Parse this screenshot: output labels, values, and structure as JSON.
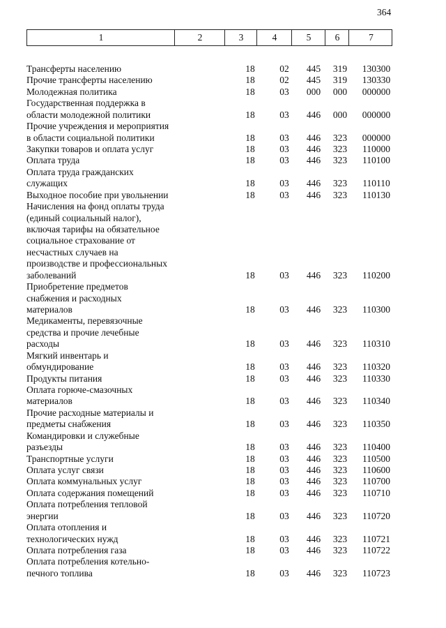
{
  "page_number": "364",
  "table": {
    "header": [
      "1",
      "2",
      "3",
      "4",
      "5",
      "6",
      "7"
    ],
    "rows": [
      {
        "name": [
          "Трансферты населению"
        ],
        "codes": [
          "18",
          "02",
          "445",
          "319",
          "130300"
        ]
      },
      {
        "name": [
          "Прочие трансферты населению"
        ],
        "codes": [
          "18",
          "02",
          "445",
          "319",
          "130330"
        ]
      },
      {
        "name": [
          "Молодежная политика"
        ],
        "codes": [
          "18",
          "03",
          "000",
          "000",
          "000000"
        ]
      },
      {
        "name": [
          "Государственная поддержка в",
          "области молодежной политики"
        ],
        "codes": [
          "18",
          "03",
          "446",
          "000",
          "000000"
        ]
      },
      {
        "name": [
          "Прочие учреждения и мероприятия",
          "в области социальной политики"
        ],
        "codes": [
          "18",
          "03",
          "446",
          "323",
          "000000"
        ]
      },
      {
        "name": [
          "Закупки товаров и оплата услуг"
        ],
        "codes": [
          "18",
          "03",
          "446",
          "323",
          "110000"
        ]
      },
      {
        "name": [
          "Оплата труда"
        ],
        "codes": [
          "18",
          "03",
          "446",
          "323",
          "110100"
        ]
      },
      {
        "name": [
          "Оплата труда гражданских",
          "служащих"
        ],
        "codes": [
          "18",
          "03",
          "446",
          "323",
          "110110"
        ]
      },
      {
        "name": [
          "Выходное пособие при увольнении"
        ],
        "codes": [
          "18",
          "03",
          "446",
          "323",
          "110130"
        ]
      },
      {
        "name": [
          "Начисления на фонд оплаты труда",
          "(единый социальный налог),",
          "включая тарифы на обязательное",
          "социальное страхование от",
          "несчастных случаев на",
          "производстве и профессиональных",
          "заболеваний"
        ],
        "codes": [
          "18",
          "03",
          "446",
          "323",
          "110200"
        ]
      },
      {
        "name": [
          "Приобретение предметов",
          "снабжения и расходных",
          "материалов"
        ],
        "codes": [
          "18",
          "03",
          "446",
          "323",
          "110300"
        ]
      },
      {
        "name": [
          "Медикаменты, перевязочные",
          "средства и прочие лечебные",
          "расходы"
        ],
        "codes": [
          "18",
          "03",
          "446",
          "323",
          "110310"
        ]
      },
      {
        "name": [
          "Мягкий инвентарь и",
          "обмундирование"
        ],
        "codes": [
          "18",
          "03",
          "446",
          "323",
          "110320"
        ]
      },
      {
        "name": [
          "Продукты питания"
        ],
        "codes": [
          "18",
          "03",
          "446",
          "323",
          "110330"
        ]
      },
      {
        "name": [
          "Оплата горюче-смазочных",
          "материалов"
        ],
        "codes": [
          "18",
          "03",
          "446",
          "323",
          "110340"
        ]
      },
      {
        "name": [
          "Прочие расходные материалы и",
          "предметы снабжения"
        ],
        "codes": [
          "18",
          "03",
          "446",
          "323",
          "110350"
        ]
      },
      {
        "name": [
          "Командировки и служебные",
          "разъезды"
        ],
        "codes": [
          "18",
          "03",
          "446",
          "323",
          "110400"
        ]
      },
      {
        "name": [
          "Транспортные услуги"
        ],
        "codes": [
          "18",
          "03",
          "446",
          "323",
          "110500"
        ]
      },
      {
        "name": [
          "Оплата услуг связи"
        ],
        "codes": [
          "18",
          "03",
          "446",
          "323",
          "110600"
        ]
      },
      {
        "name": [
          "Оплата коммунальных услуг"
        ],
        "codes": [
          "18",
          "03",
          "446",
          "323",
          "110700"
        ]
      },
      {
        "name": [
          "Оплата содержания помещений"
        ],
        "codes": [
          "18",
          "03",
          "446",
          "323",
          "110710"
        ]
      },
      {
        "name": [
          "Оплата потребления тепловой",
          "энергии"
        ],
        "codes": [
          "18",
          "03",
          "446",
          "323",
          "110720"
        ]
      },
      {
        "name": [
          "Оплата отопления и",
          "технологических нужд"
        ],
        "codes": [
          "18",
          "03",
          "446",
          "323",
          "110721"
        ]
      },
      {
        "name": [
          "Оплата потребления газа"
        ],
        "codes": [
          "18",
          "03",
          "446",
          "323",
          "110722"
        ]
      },
      {
        "name": [
          "Оплата потребления котельно-",
          "печного топлива"
        ],
        "codes": [
          "18",
          "03",
          "446",
          "323",
          "110723"
        ]
      }
    ]
  }
}
